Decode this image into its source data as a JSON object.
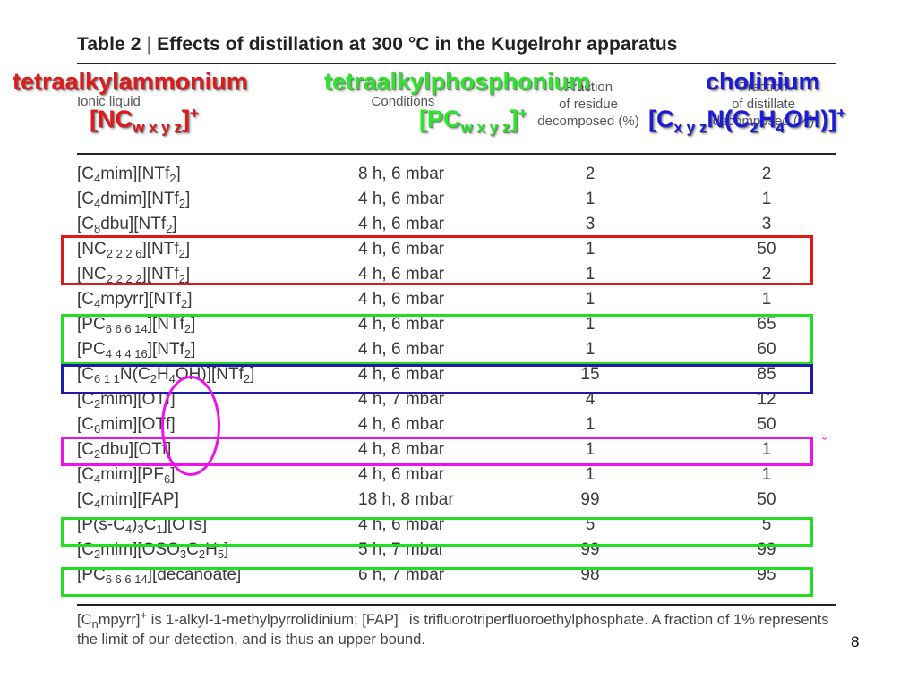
{
  "title": {
    "prefix": "Table 2",
    "main": "Effects of distillation at 300 °C in the Kugelrohr apparatus"
  },
  "headers": {
    "col1": "Ionic liquid",
    "col2": "Conditions",
    "col3": [
      "Fraction",
      "of residue",
      "decomposed (%)"
    ],
    "col4": [
      "Fraction",
      "of distillate",
      "decomposed (%)"
    ]
  },
  "rows": [
    {
      "il": "[C<sub>4</sub>mim][NTf<sub>2</sub>]",
      "cond": "8 h, 6 mbar",
      "res": "2",
      "dist": "2"
    },
    {
      "il": "[C<sub>4</sub>dmim][NTf<sub>2</sub>]",
      "cond": "4 h, 6 mbar",
      "res": "1",
      "dist": "1"
    },
    {
      "il": "[C<sub>8</sub>dbu][NTf<sub>2</sub>]",
      "cond": "4 h, 6 mbar",
      "res": "3",
      "dist": "3"
    },
    {
      "il": "[NC<sub>2 2 2 6</sub>][NTf<sub>2</sub>]",
      "cond": "4 h, 6 mbar",
      "res": "1",
      "dist": "50"
    },
    {
      "il": "[NC<sub>2 2 2 2</sub>][NTf<sub>2</sub>]",
      "cond": "4 h, 6 mbar",
      "res": "1",
      "dist": "2"
    },
    {
      "il": "[C<sub>4</sub>mpyrr][NTf<sub>2</sub>]",
      "cond": "4 h, 6 mbar",
      "res": "1",
      "dist": "1"
    },
    {
      "il": "[PC<sub>6 6 6 14</sub>][NTf<sub>2</sub>]",
      "cond": "4 h, 6 mbar",
      "res": "1",
      "dist": "65"
    },
    {
      "il": "[PC<sub>4 4 4 16</sub>][NTf<sub>2</sub>]",
      "cond": "4 h, 6 mbar",
      "res": "1",
      "dist": "60"
    },
    {
      "il": "[C<sub>6 1 1</sub>N(C<sub>2</sub>H<sub>4</sub>OH)][NTf<sub>2</sub>]",
      "cond": "4 h, 6 mbar",
      "res": "15",
      "dist": "85"
    },
    {
      "il": "[C<sub>2</sub>mim][OTf]",
      "cond": "4 h, 7 mbar",
      "res": "4",
      "dist": "12"
    },
    {
      "il": "[C<sub>6</sub>mim][OTf]",
      "cond": "4 h, 6 mbar",
      "res": "1",
      "dist": "50"
    },
    {
      "il": "[C<sub>2</sub>dbu][OTf]",
      "cond": "4 h, 8 mbar",
      "res": "1",
      "dist": "1"
    },
    {
      "il": "[C<sub>4</sub>mim][PF<sub>6</sub>]",
      "cond": "4 h, 6 mbar",
      "res": "1",
      "dist": "1"
    },
    {
      "il": "[C<sub>4</sub>mim][FAP]",
      "cond": "18 h, 8 mbar",
      "res": "99",
      "dist": "50"
    },
    {
      "il": "[P(s-C<sub>4</sub>)<sub>3</sub>C<sub>1</sub>][OTs]",
      "cond": "4 h, 6 mbar",
      "res": "5",
      "dist": "5"
    },
    {
      "il": "[C<sub>2</sub>mim][OSO<sub>3</sub>C<sub>2</sub>H<sub>5</sub>]",
      "cond": "5 h, 7 mbar",
      "res": "99",
      "dist": "99"
    },
    {
      "il": "[PC<sub>6 6 6 14</sub>][decanoate]",
      "cond": "6 h, 7 mbar",
      "res": "98",
      "dist": "95"
    }
  ],
  "footnote": "[C<sub>n</sub>mpyrr]<sup>+</sup> is 1-alkyl-1-methylpyrrolidinium; [FAP]<sup>−</sup> is trifluorotriperfluoroethylphosphate. A fraction of 1% represents the limit of our detection, and is thus an upper bound.",
  "annotations": {
    "ammonium_label": "tetraalkylammonium",
    "ammonium_formula": "[NC<sub>w x y z</sub>]<sup>+</sup>",
    "phosphonium_label": "tetraalkylphosphonium",
    "phosphonium_formula": "[PC<sub>w x y z</sub>]<sup>+</sup>",
    "cholinium_label": "cholinium",
    "cholinium_formula": "[C<sub>x y z</sub>N(C<sub>2</sub>H<sub>4</sub>OH)]<sup>+</sup>"
  },
  "colors": {
    "red": "#e0191b",
    "green": "#22dd22",
    "blue": "#1c1ca8",
    "magenta": "#ee11ee"
  },
  "page_number": "8"
}
